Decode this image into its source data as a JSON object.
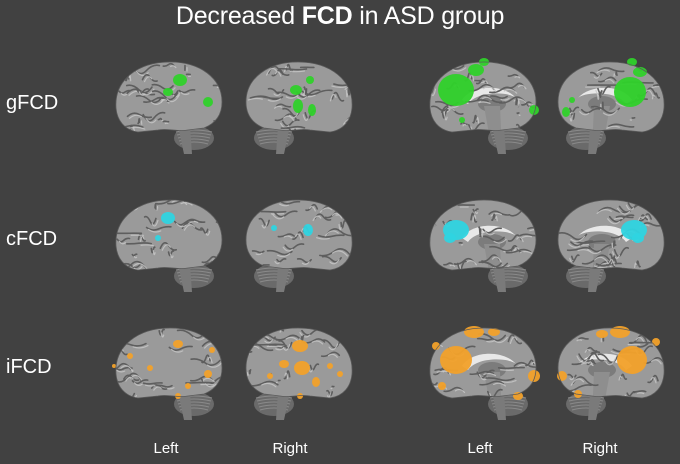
{
  "title": {
    "prefix": "Decreased ",
    "bold": "FCD",
    "suffix": " in ASD group"
  },
  "rows": [
    {
      "label": "gFCD",
      "color": "#2fd12a"
    },
    {
      "label": "cFCD",
      "color": "#2fd4e0"
    },
    {
      "label": "iFCD",
      "color": "#f2a12a"
    }
  ],
  "columns": [
    "Left",
    "Right",
    "Left",
    "Right"
  ],
  "colors": {
    "background": "#414141",
    "cortex": "#9a9a9a",
    "gyri": "#c8c8c8",
    "sulci": "#5e5e5e"
  }
}
